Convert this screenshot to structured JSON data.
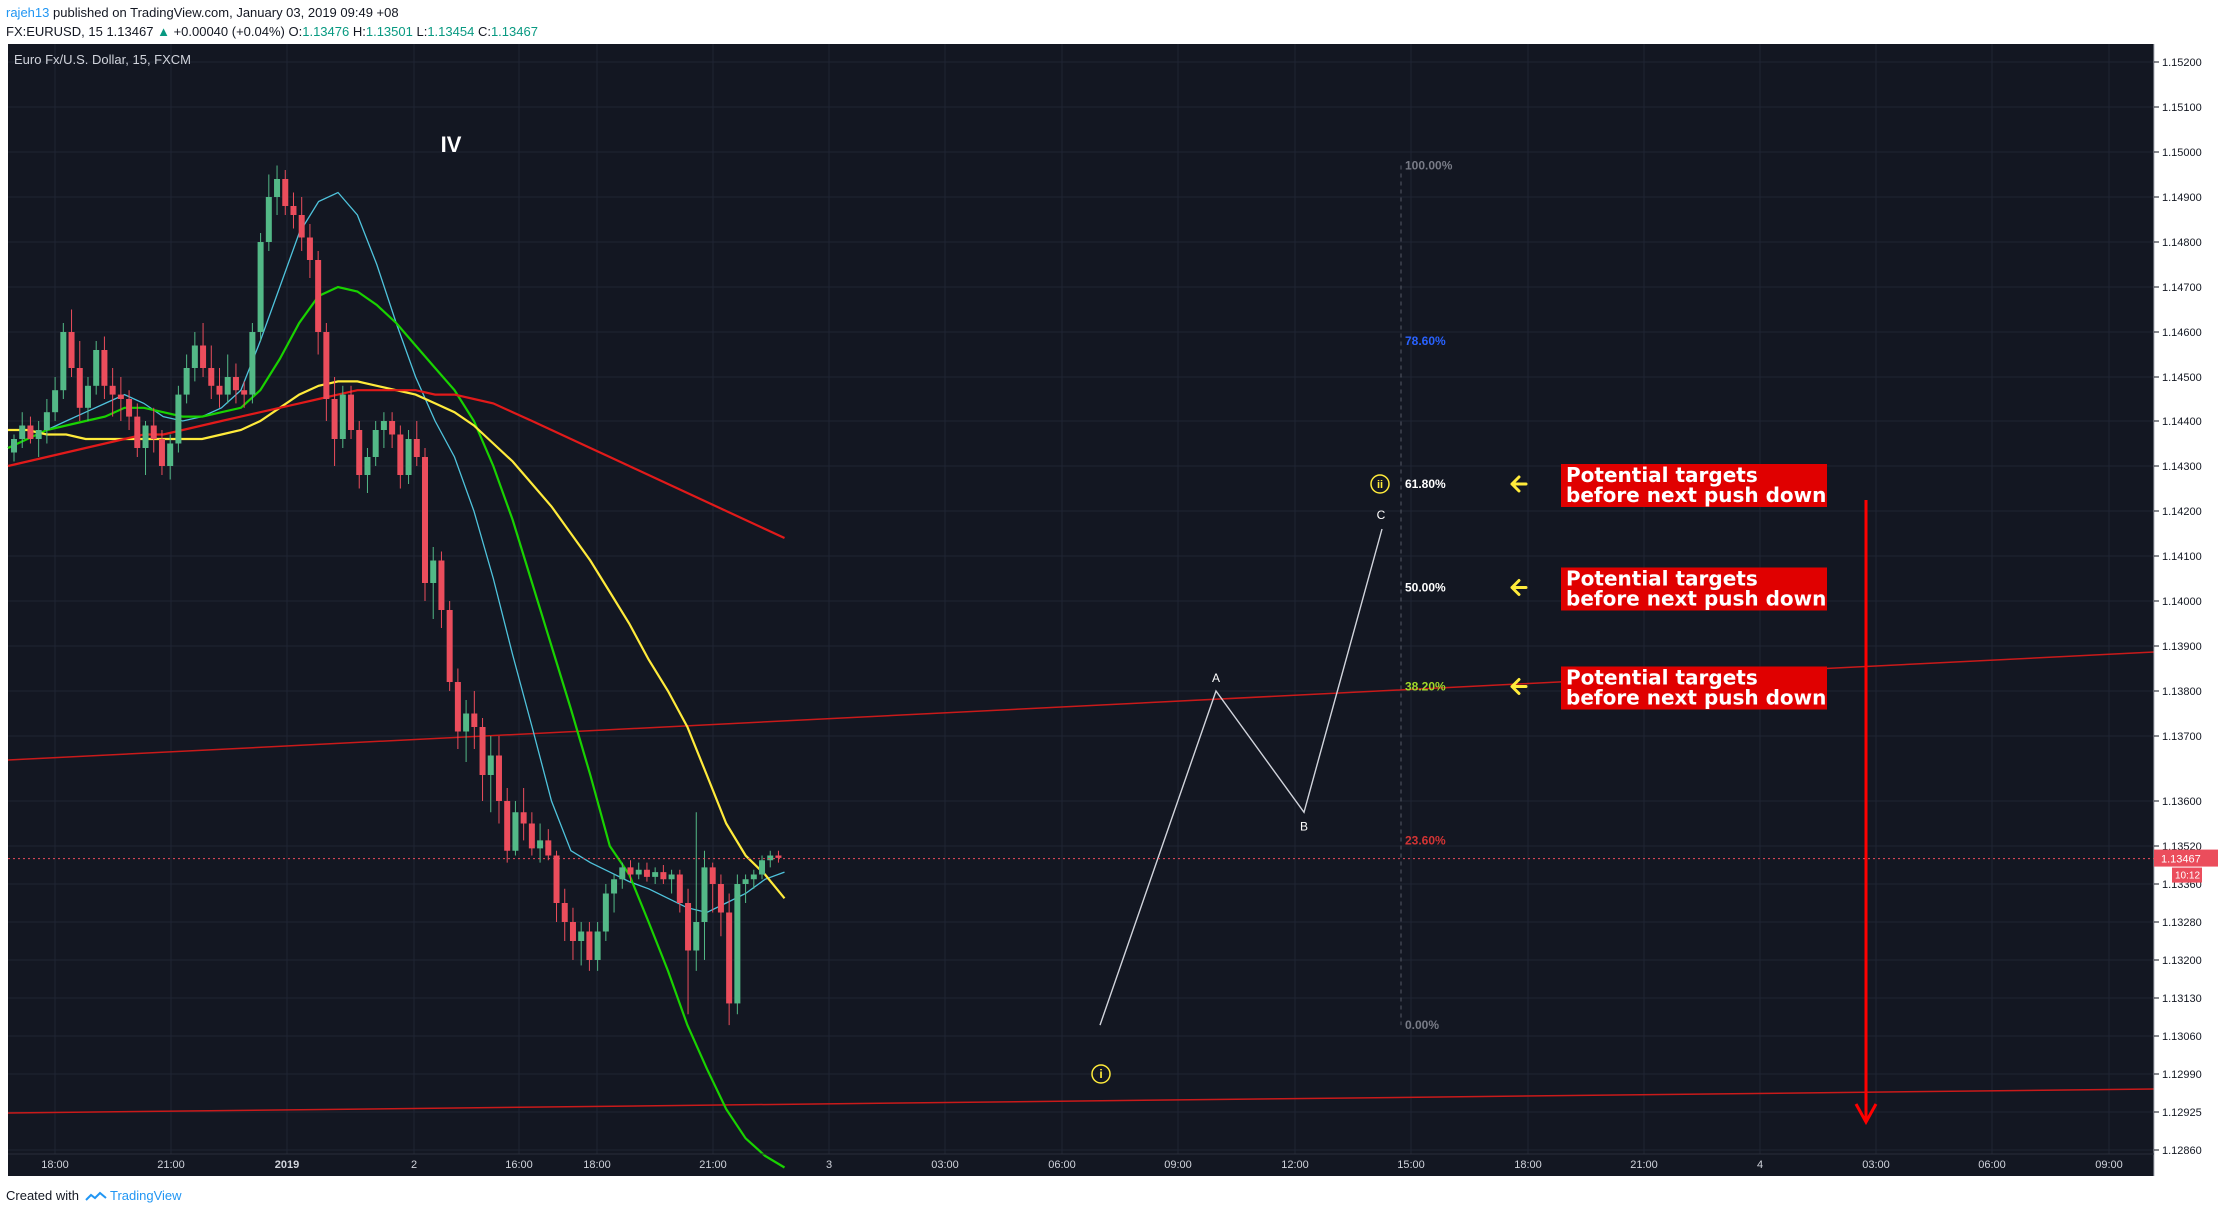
{
  "header": {
    "author": "rajeh13",
    "published_text": "published on TradingView.com, January 03, 2019 09:49 +08",
    "symbol": "FX:EURUSD, 15",
    "last_price": "1.13467",
    "change": "+0.00040 (+0.04%)",
    "o_label": "O:",
    "o_value": "1.13476",
    "h_label": "H:",
    "h_value": "1.13501",
    "l_label": "L:",
    "l_value": "1.13454",
    "c_label": "C:",
    "c_value": "1.13467"
  },
  "footer": {
    "created_with": "Created with",
    "brand": "TradingView"
  },
  "colors": {
    "background": "#131722",
    "up_candle": "#53b987",
    "down_candle": "#eb4d5c",
    "ma_fast": "#4fc3dc",
    "ma_green": "#19d200",
    "ma_yellow": "#ffeb3b",
    "ma_red": "#e11a1a",
    "annotation_box": "#e00000",
    "arrow_yellow": "#ffeb3b"
  },
  "chart_data": {
    "type": "candlestick",
    "title": "Euro Fx/U.S. Dollar, 15, FXCM",
    "y_ticks": [
      "1.15200",
      "1.15100",
      "1.15000",
      "1.14900",
      "1.14800",
      "1.14700",
      "1.14600",
      "1.14500",
      "1.14400",
      "1.14300",
      "1.14200",
      "1.14100",
      "1.14000",
      "1.13900",
      "1.13800",
      "1.13700",
      "1.13600",
      "1.13520",
      "1.13360",
      "1.13280",
      "1.13200",
      "1.13130",
      "1.13060",
      "1.12990",
      "1.12925",
      "1.12860"
    ],
    "x_ticks": [
      "18:00",
      "21:00",
      "2019",
      "2",
      "16:00",
      "18:00",
      "21:00",
      "3",
      "03:00",
      "06:00",
      "09:00",
      "12:00",
      "15:00",
      "18:00",
      "21:00",
      "4",
      "03:00",
      "06:00",
      "09:00"
    ],
    "price_label": "1.13467",
    "countdown_label": "10:12",
    "candles": [
      [
        1.1433,
        1.1437,
        1.1431,
        1.1436
      ],
      [
        1.1436,
        1.1442,
        1.1434,
        1.1439
      ],
      [
        1.1439,
        1.1441,
        1.1435,
        1.1436
      ],
      [
        1.1436,
        1.144,
        1.1432,
        1.1438
      ],
      [
        1.1438,
        1.1445,
        1.1435,
        1.1442
      ],
      [
        1.1442,
        1.145,
        1.144,
        1.1447
      ],
      [
        1.1447,
        1.1462,
        1.1445,
        1.146
      ],
      [
        1.146,
        1.1465,
        1.145,
        1.1452
      ],
      [
        1.1452,
        1.1458,
        1.144,
        1.1443
      ],
      [
        1.1443,
        1.145,
        1.144,
        1.1448
      ],
      [
        1.1448,
        1.1458,
        1.1446,
        1.1456
      ],
      [
        1.1456,
        1.1459,
        1.1445,
        1.1448
      ],
      [
        1.1448,
        1.1452,
        1.1441,
        1.1446
      ],
      [
        1.1446,
        1.145,
        1.144,
        1.1445
      ],
      [
        1.1445,
        1.1447,
        1.1438,
        1.1441
      ],
      [
        1.1441,
        1.1444,
        1.1432,
        1.1434
      ],
      [
        1.1434,
        1.144,
        1.1428,
        1.1439
      ],
      [
        1.1439,
        1.1443,
        1.1433,
        1.1436
      ],
      [
        1.1436,
        1.1438,
        1.1428,
        1.143
      ],
      [
        1.143,
        1.1437,
        1.1427,
        1.1435
      ],
      [
        1.1435,
        1.1448,
        1.1433,
        1.1446
      ],
      [
        1.1446,
        1.1455,
        1.1444,
        1.1452
      ],
      [
        1.1452,
        1.146,
        1.1449,
        1.1457
      ],
      [
        1.1457,
        1.1462,
        1.145,
        1.1452
      ],
      [
        1.1452,
        1.1457,
        1.1445,
        1.1448
      ],
      [
        1.1448,
        1.1452,
        1.1443,
        1.1446
      ],
      [
        1.1446,
        1.1455,
        1.1444,
        1.145
      ],
      [
        1.145,
        1.1453,
        1.1444,
        1.1447
      ],
      [
        1.1447,
        1.1449,
        1.1443,
        1.1446
      ],
      [
        1.1446,
        1.1462,
        1.1444,
        1.146
      ],
      [
        1.146,
        1.1482,
        1.1458,
        1.148
      ],
      [
        1.148,
        1.1495,
        1.1478,
        1.149
      ],
      [
        1.149,
        1.1497,
        1.1486,
        1.1494
      ],
      [
        1.1494,
        1.1496,
        1.1486,
        1.1488
      ],
      [
        1.1488,
        1.1491,
        1.1483,
        1.1486
      ],
      [
        1.1486,
        1.149,
        1.1478,
        1.1481
      ],
      [
        1.1481,
        1.1484,
        1.1472,
        1.1476
      ],
      [
        1.1476,
        1.1478,
        1.1455,
        1.146
      ],
      [
        1.146,
        1.1462,
        1.144,
        1.1445
      ],
      [
        1.1445,
        1.145,
        1.143,
        1.1436
      ],
      [
        1.1436,
        1.1448,
        1.1434,
        1.1446
      ],
      [
        1.1446,
        1.1448,
        1.1436,
        1.1438
      ],
      [
        1.1438,
        1.144,
        1.1425,
        1.1428
      ],
      [
        1.1428,
        1.1434,
        1.1424,
        1.1432
      ],
      [
        1.1432,
        1.144,
        1.143,
        1.1438
      ],
      [
        1.1438,
        1.1442,
        1.1434,
        1.144
      ],
      [
        1.144,
        1.1442,
        1.1434,
        1.1437
      ],
      [
        1.1437,
        1.1439,
        1.1425,
        1.1428
      ],
      [
        1.1428,
        1.1438,
        1.1426,
        1.1436
      ],
      [
        1.1436,
        1.144,
        1.143,
        1.1432
      ],
      [
        1.1432,
        1.1434,
        1.14,
        1.1404
      ],
      [
        1.1404,
        1.1412,
        1.1396,
        1.1409
      ],
      [
        1.1409,
        1.1411,
        1.1394,
        1.1398
      ],
      [
        1.1398,
        1.14,
        1.138,
        1.1382
      ],
      [
        1.1382,
        1.1385,
        1.1368,
        1.1371
      ],
      [
        1.1371,
        1.1378,
        1.1366,
        1.1375
      ],
      [
        1.1375,
        1.138,
        1.1368,
        1.1372
      ],
      [
        1.1372,
        1.1374,
        1.136,
        1.1364
      ],
      [
        1.1364,
        1.137,
        1.1358,
        1.1367
      ],
      [
        1.1367,
        1.137,
        1.1356,
        1.136
      ],
      [
        1.136,
        1.1362,
        1.1345,
        1.135
      ],
      [
        1.135,
        1.136,
        1.1348,
        1.1358
      ],
      [
        1.1358,
        1.1362,
        1.1353,
        1.1356
      ],
      [
        1.1356,
        1.1358,
        1.1348,
        1.1351
      ],
      [
        1.1351,
        1.1356,
        1.1345,
        1.1353
      ],
      [
        1.1353,
        1.1355,
        1.1346,
        1.1348
      ],
      [
        1.1348,
        1.135,
        1.1328,
        1.1332
      ],
      [
        1.1332,
        1.1335,
        1.1324,
        1.1328
      ],
      [
        1.1328,
        1.1331,
        1.132,
        1.1324
      ],
      [
        1.1324,
        1.1328,
        1.1319,
        1.1326
      ],
      [
        1.1326,
        1.1328,
        1.1318,
        1.132
      ],
      [
        1.132,
        1.1328,
        1.1318,
        1.1326
      ],
      [
        1.1326,
        1.1336,
        1.1324,
        1.1334
      ],
      [
        1.1334,
        1.134,
        1.133,
        1.1338
      ],
      [
        1.1338,
        1.1345,
        1.1335,
        1.1343
      ],
      [
        1.1343,
        1.1346,
        1.1337,
        1.134
      ],
      [
        1.134,
        1.1345,
        1.1338,
        1.1342
      ],
      [
        1.1342,
        1.1345,
        1.1337,
        1.1339
      ],
      [
        1.1339,
        1.1343,
        1.1336,
        1.1341
      ],
      [
        1.1341,
        1.1344,
        1.1336,
        1.1338
      ],
      [
        1.1338,
        1.1342,
        1.1334,
        1.134
      ],
      [
        1.134,
        1.1342,
        1.133,
        1.1332
      ],
      [
        1.1332,
        1.1335,
        1.131,
        1.1322
      ],
      [
        1.1322,
        1.1358,
        1.1318,
        1.1328
      ],
      [
        1.1328,
        1.135,
        1.132,
        1.1343
      ],
      [
        1.1343,
        1.1345,
        1.133,
        1.1336
      ],
      [
        1.1336,
        1.134,
        1.1325,
        1.133
      ],
      [
        1.133,
        1.1334,
        1.1308,
        1.1312
      ],
      [
        1.1312,
        1.134,
        1.131,
        1.1336
      ],
      [
        1.1336,
        1.134,
        1.1332,
        1.1338
      ],
      [
        1.1338,
        1.1342,
        1.1335,
        1.134
      ],
      [
        1.134,
        1.1348,
        1.1338,
        1.1346
      ],
      [
        1.1346,
        1.135,
        1.1343,
        1.1348
      ],
      [
        1.1348,
        1.135,
        1.1345,
        1.1347
      ]
    ],
    "moving_averages": [
      {
        "values": [
          1.1434,
          1.1436,
          1.1438,
          1.144,
          1.1442,
          1.1444,
          1.1446,
          1.1444,
          1.1441,
          1.144,
          1.1441,
          1.1443,
          1.1447,
          1.1458,
          1.147,
          1.1482,
          1.1489,
          1.1491,
          1.1486,
          1.1475,
          1.1462,
          1.145,
          1.144,
          1.1432,
          1.142,
          1.1405,
          1.1388,
          1.1372,
          1.136,
          1.135,
          1.1345,
          1.1341,
          1.1337,
          1.1335,
          1.1333,
          1.1331,
          1.133,
          1.1332,
          1.1334,
          1.1338,
          1.1341
        ]
      },
      {
        "values": [
          1.1434,
          1.1436,
          1.1438,
          1.1439,
          1.144,
          1.1441,
          1.1443,
          1.1443,
          1.1442,
          1.1441,
          1.1441,
          1.1442,
          1.1443,
          1.1447,
          1.1454,
          1.1462,
          1.1468,
          1.147,
          1.1469,
          1.1466,
          1.1462,
          1.1457,
          1.1452,
          1.1447,
          1.144,
          1.143,
          1.1418,
          1.1404,
          1.139,
          1.1376,
          1.1364,
          1.1352,
          1.134,
          1.1328,
          1.1318,
          1.1308,
          1.13,
          1.1293,
          1.1288,
          1.1285,
          1.1283
        ]
      },
      {
        "values": [
          1.1438,
          1.1438,
          1.1437,
          1.1437,
          1.1436,
          1.1436,
          1.1436,
          1.1436,
          1.1436,
          1.1436,
          1.1436,
          1.1437,
          1.1438,
          1.144,
          1.1443,
          1.1446,
          1.1448,
          1.1449,
          1.1449,
          1.1448,
          1.1447,
          1.1446,
          1.1444,
          1.1442,
          1.1439,
          1.1435,
          1.1431,
          1.1426,
          1.1421,
          1.1415,
          1.1409,
          1.1402,
          1.1395,
          1.1387,
          1.138,
          1.1372,
          1.1364,
          1.1356,
          1.1348,
          1.134,
          1.1333
        ]
      },
      {
        "values": [
          1.143,
          1.1431,
          1.1432,
          1.1433,
          1.1434,
          1.1435,
          1.1436,
          1.1437,
          1.1437,
          1.1438,
          1.1439,
          1.144,
          1.1441,
          1.1442,
          1.1443,
          1.1444,
          1.1445,
          1.1446,
          1.1447,
          1.1447,
          1.1447,
          1.1447,
          1.1446,
          1.1446,
          1.1445,
          1.1444,
          1.1442,
          1.144,
          1.1438,
          1.1436,
          1.1434,
          1.1432,
          1.143,
          1.1428,
          1.1426,
          1.1424,
          1.1422,
          1.142,
          1.1418,
          1.1416,
          1.1414
        ]
      }
    ],
    "fib_levels": [
      {
        "label": "100.00%",
        "value": 1.1497,
        "color": "#787b86"
      },
      {
        "label": "78.60%",
        "value": 1.1458,
        "color": "#2962ff"
      },
      {
        "label": "61.80%",
        "value": 1.1426,
        "color": "#ffffff"
      },
      {
        "label": "50.00%",
        "value": 1.1403,
        "color": "#ffffff"
      },
      {
        "label": "38.20%",
        "value": 1.1381,
        "color": "#9fd82a"
      },
      {
        "label": "23.60%",
        "value": 1.1353,
        "color": "#d33434"
      },
      {
        "label": "0.00%",
        "value": 1.1308,
        "color": "#787b86"
      }
    ],
    "wave_labels": {
      "iv": "IV",
      "i": "i",
      "ii": "ii",
      "a": "A",
      "b": "B",
      "c": "C"
    },
    "annotations": [
      {
        "line1": "Potential targets",
        "line2": "before next push down",
        "level": "61.80%"
      },
      {
        "line1": "Potential targets",
        "line2": "before next push down",
        "level": "50.00%"
      },
      {
        "line1": "Potential targets",
        "line2": "before next push down",
        "level": "38.20%"
      }
    ]
  }
}
